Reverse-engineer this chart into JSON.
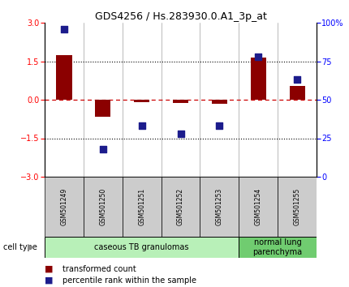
{
  "title": "GDS4256 / Hs.283930.0.A1_3p_at",
  "samples": [
    "GSM501249",
    "GSM501250",
    "GSM501251",
    "GSM501252",
    "GSM501253",
    "GSM501254",
    "GSM501255"
  ],
  "transformed_count": [
    1.75,
    -0.65,
    -0.08,
    -0.12,
    -0.15,
    1.65,
    0.55
  ],
  "percentile_rank": [
    96,
    18,
    33,
    28,
    33,
    78,
    63
  ],
  "ylim_left": [
    -3,
    3
  ],
  "ylim_right": [
    0,
    100
  ],
  "left_ticks": [
    -3,
    -1.5,
    0,
    1.5,
    3
  ],
  "right_ticks": [
    0,
    25,
    50,
    75,
    100
  ],
  "dotted_lines": [
    -1.5,
    1.5
  ],
  "bar_color": "#8B0000",
  "dot_color": "#1C1C8C",
  "dashed_color": "#CC0000",
  "sample_box_color": "#cccccc",
  "cell_types": [
    {
      "label": "caseous TB granulomas",
      "samples": [
        0,
        1,
        2,
        3,
        4
      ],
      "color": "#b8f0b8"
    },
    {
      "label": "normal lung\nparenchyma",
      "samples": [
        5,
        6
      ],
      "color": "#70cc70"
    }
  ],
  "legend_bar_label": "transformed count",
  "legend_dot_label": "percentile rank within the sample",
  "cell_type_label": "cell type",
  "bar_width": 0.4,
  "dot_size": 40,
  "title_fontsize": 9,
  "tick_fontsize": 7,
  "sample_fontsize": 5.5,
  "celltype_fontsize": 7,
  "legend_fontsize": 7
}
